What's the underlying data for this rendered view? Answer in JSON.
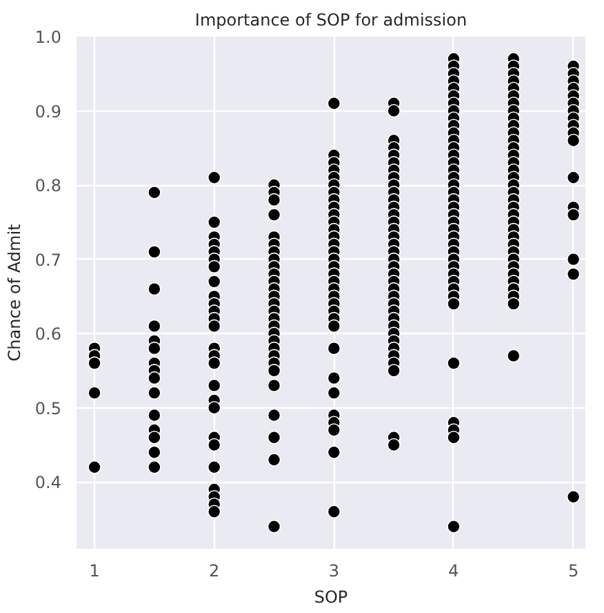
{
  "chart_data": {
    "type": "scatter",
    "title": "Importance of SOP for admission",
    "xlabel": "SOP",
    "ylabel": "Chance of Admit",
    "x": [
      1,
      1,
      1,
      1,
      1,
      1.5,
      1.5,
      1.5,
      1.5,
      1.5,
      1.5,
      1.5,
      1.5,
      1.5,
      1.5,
      1.5,
      1.5,
      1.5,
      1.5,
      1.5,
      2,
      2,
      2,
      2,
      2,
      2,
      2,
      2,
      2,
      2,
      2,
      2,
      2,
      2,
      2,
      2,
      2,
      2,
      2,
      2,
      2,
      2,
      2,
      2,
      2,
      2,
      2.5,
      2.5,
      2.5,
      2.5,
      2.5,
      2.5,
      2.5,
      2.5,
      2.5,
      2.5,
      2.5,
      2.5,
      2.5,
      2.5,
      2.5,
      2.5,
      2.5,
      2.5,
      2.5,
      2.5,
      2.5,
      2.5,
      2.5,
      2.5,
      2.5,
      2.5,
      2.5,
      2.5,
      3,
      3,
      3,
      3,
      3,
      3,
      3,
      3,
      3,
      3,
      3,
      3,
      3,
      3,
      3,
      3,
      3,
      3,
      3,
      3,
      3,
      3,
      3,
      3,
      3,
      3,
      3,
      3,
      3,
      3,
      3,
      3,
      3,
      3.5,
      3.5,
      3.5,
      3.5,
      3.5,
      3.5,
      3.5,
      3.5,
      3.5,
      3.5,
      3.5,
      3.5,
      3.5,
      3.5,
      3.5,
      3.5,
      3.5,
      3.5,
      3.5,
      3.5,
      3.5,
      3.5,
      3.5,
      3.5,
      3.5,
      3.5,
      3.5,
      3.5,
      3.5,
      3.5,
      3.5,
      3.5,
      3.5,
      3.5,
      3.5,
      3.5,
      4,
      4,
      4,
      4,
      4,
      4,
      4,
      4,
      4,
      4,
      4,
      4,
      4,
      4,
      4,
      4,
      4,
      4,
      4,
      4,
      4,
      4,
      4,
      4,
      4,
      4,
      4,
      4,
      4,
      4,
      4,
      4,
      4,
      4,
      4,
      4,
      4,
      4,
      4,
      4.5,
      4.5,
      4.5,
      4.5,
      4.5,
      4.5,
      4.5,
      4.5,
      4.5,
      4.5,
      4.5,
      4.5,
      4.5,
      4.5,
      4.5,
      4.5,
      4.5,
      4.5,
      4.5,
      4.5,
      4.5,
      4.5,
      4.5,
      4.5,
      4.5,
      4.5,
      4.5,
      4.5,
      4.5,
      4.5,
      4.5,
      4.5,
      4.5,
      4.5,
      4.5,
      5,
      5,
      5,
      5,
      5,
      5,
      5,
      5,
      5,
      5,
      5,
      5,
      5,
      5,
      5,
      5,
      5
    ],
    "values": [
      0.58,
      0.57,
      0.56,
      0.52,
      0.42,
      0.79,
      0.71,
      0.66,
      0.61,
      0.59,
      0.58,
      0.56,
      0.55,
      0.54,
      0.52,
      0.49,
      0.47,
      0.46,
      0.44,
      0.42,
      0.81,
      0.75,
      0.73,
      0.72,
      0.71,
      0.7,
      0.69,
      0.67,
      0.65,
      0.64,
      0.63,
      0.62,
      0.61,
      0.58,
      0.57,
      0.56,
      0.53,
      0.51,
      0.5,
      0.46,
      0.45,
      0.42,
      0.39,
      0.38,
      0.37,
      0.36,
      0.8,
      0.79,
      0.78,
      0.76,
      0.73,
      0.72,
      0.71,
      0.7,
      0.69,
      0.68,
      0.67,
      0.66,
      0.65,
      0.64,
      0.63,
      0.62,
      0.61,
      0.6,
      0.59,
      0.58,
      0.57,
      0.56,
      0.55,
      0.53,
      0.49,
      0.46,
      0.43,
      0.34,
      0.91,
      0.84,
      0.83,
      0.82,
      0.81,
      0.8,
      0.79,
      0.78,
      0.77,
      0.76,
      0.75,
      0.74,
      0.73,
      0.72,
      0.71,
      0.7,
      0.69,
      0.68,
      0.67,
      0.66,
      0.65,
      0.64,
      0.63,
      0.62,
      0.61,
      0.58,
      0.54,
      0.52,
      0.49,
      0.48,
      0.47,
      0.44,
      0.36,
      0.91,
      0.9,
      0.86,
      0.85,
      0.84,
      0.83,
      0.82,
      0.81,
      0.8,
      0.79,
      0.78,
      0.77,
      0.76,
      0.75,
      0.74,
      0.73,
      0.72,
      0.71,
      0.7,
      0.69,
      0.68,
      0.67,
      0.66,
      0.65,
      0.64,
      0.63,
      0.62,
      0.61,
      0.6,
      0.59,
      0.58,
      0.57,
      0.56,
      0.55,
      0.46,
      0.45,
      0.97,
      0.96,
      0.95,
      0.94,
      0.93,
      0.92,
      0.91,
      0.9,
      0.89,
      0.88,
      0.87,
      0.86,
      0.85,
      0.84,
      0.83,
      0.82,
      0.81,
      0.8,
      0.79,
      0.78,
      0.77,
      0.76,
      0.75,
      0.74,
      0.73,
      0.72,
      0.71,
      0.7,
      0.69,
      0.68,
      0.67,
      0.66,
      0.65,
      0.64,
      0.56,
      0.48,
      0.47,
      0.46,
      0.34,
      0.97,
      0.96,
      0.95,
      0.94,
      0.93,
      0.92,
      0.91,
      0.9,
      0.89,
      0.88,
      0.87,
      0.86,
      0.85,
      0.84,
      0.83,
      0.82,
      0.81,
      0.8,
      0.79,
      0.78,
      0.77,
      0.76,
      0.75,
      0.74,
      0.73,
      0.72,
      0.71,
      0.7,
      0.69,
      0.68,
      0.67,
      0.66,
      0.65,
      0.64,
      0.57,
      0.96,
      0.95,
      0.94,
      0.93,
      0.92,
      0.91,
      0.9,
      0.89,
      0.88,
      0.87,
      0.86,
      0.81,
      0.77,
      0.76,
      0.7,
      0.68,
      0.38
    ],
    "color": "#000000",
    "marker": "circle",
    "grid": true,
    "xlim": [
      0.85,
      5.1
    ],
    "ylim": [
      0.31,
      1.0
    ],
    "xticks": [
      1,
      2,
      3,
      4,
      5
    ],
    "yticks": [
      0.4,
      0.5,
      0.6,
      0.7,
      0.8,
      0.9,
      {
        "value": 1.0,
        "label": "1.0"
      }
    ]
  }
}
